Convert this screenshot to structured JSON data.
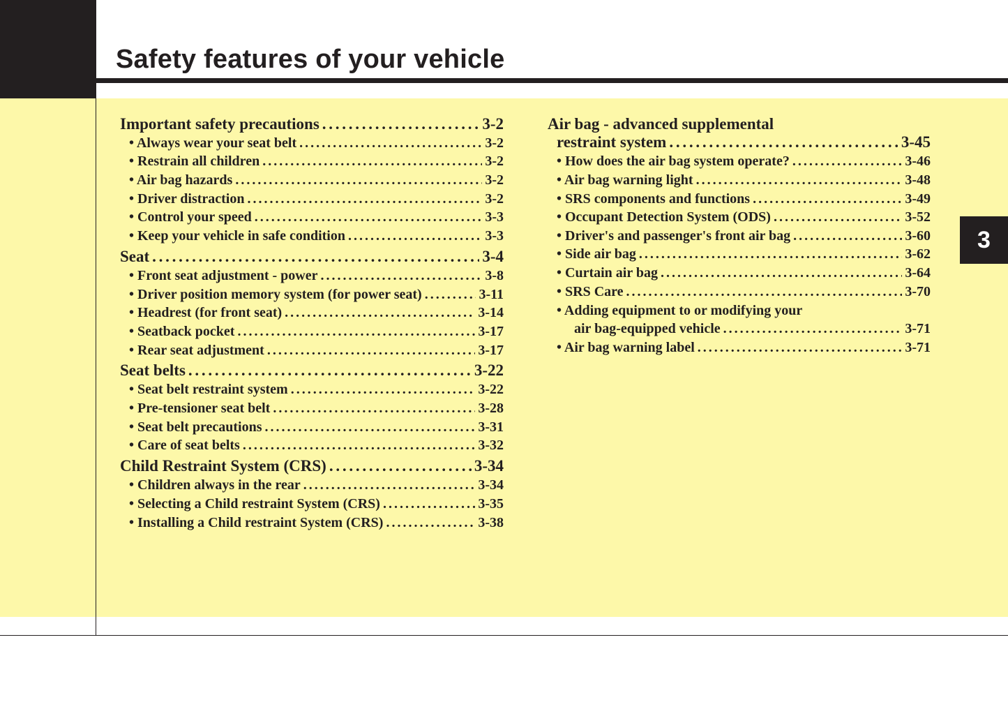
{
  "header": {
    "title": "Safety features of your vehicle",
    "chapter_tab": "3"
  },
  "colors": {
    "background": "#fdf8a9",
    "dark": "#231f20"
  },
  "toc": {
    "left": [
      {
        "level": "main",
        "label": "Important safety precautions",
        "page": "3-2"
      },
      {
        "level": "sub",
        "label": "• Always wear your seat belt",
        "page": "3-2"
      },
      {
        "level": "sub",
        "label": "• Restrain all children",
        "page": "3-2"
      },
      {
        "level": "sub",
        "label": "• Air bag hazards",
        "page": "3-2"
      },
      {
        "level": "sub",
        "label": "• Driver distraction",
        "page": "3-2"
      },
      {
        "level": "sub",
        "label": "• Control your speed",
        "page": "3-3"
      },
      {
        "level": "sub",
        "label": "• Keep your vehicle in safe condition",
        "page": "3-3"
      },
      {
        "level": "main",
        "label": "Seat",
        "page": "3-4"
      },
      {
        "level": "sub",
        "label": "• Front seat adjustment - power",
        "page": "3-8"
      },
      {
        "level": "sub",
        "label": "• Driver position memory system (for power seat)",
        "page": "3-11"
      },
      {
        "level": "sub",
        "label": "• Headrest (for front seat)",
        "page": "3-14"
      },
      {
        "level": "sub",
        "label": "• Seatback pocket",
        "page": "3-17"
      },
      {
        "level": "sub",
        "label": "• Rear seat adjustment",
        "page": "3-17"
      },
      {
        "level": "main",
        "label": "Seat belts",
        "page": "3-22"
      },
      {
        "level": "sub",
        "label": "• Seat belt restraint system",
        "page": "3-22"
      },
      {
        "level": "sub",
        "label": "• Pre-tensioner seat belt",
        "page": "3-28"
      },
      {
        "level": "sub",
        "label": "• Seat belt precautions",
        "page": "3-31"
      },
      {
        "level": "sub",
        "label": "• Care of seat belts",
        "page": "3-32"
      },
      {
        "level": "main",
        "label": "Child Restraint System (CRS)",
        "page": "3-34"
      },
      {
        "level": "sub",
        "label": "• Children always in the rear",
        "page": "3-34"
      },
      {
        "level": "sub",
        "label": "• Selecting a Child restraint System (CRS)",
        "page": "3-35"
      },
      {
        "level": "sub",
        "label": "• Installing a Child restraint System (CRS)",
        "page": "3-38"
      }
    ],
    "right": [
      {
        "level": "main",
        "label": "Air bag - advanced supplemental",
        "page": ""
      },
      {
        "level": "main-cont",
        "label": "restraint system",
        "page": "3-45"
      },
      {
        "level": "sub",
        "label": "• How does the air bag system operate?",
        "page": "3-46"
      },
      {
        "level": "sub",
        "label": "• Air bag warning light",
        "page": "3-48"
      },
      {
        "level": "sub",
        "label": "• SRS components and functions",
        "page": "3-49"
      },
      {
        "level": "sub",
        "label": "• Occupant Detection System (ODS)",
        "page": "3-52"
      },
      {
        "level": "sub",
        "label": "• Driver's and passenger's front air bag",
        "page": "3-60"
      },
      {
        "level": "sub",
        "label": "• Side air bag",
        "page": "3-62"
      },
      {
        "level": "sub",
        "label": "• Curtain air bag",
        "page": "3-64"
      },
      {
        "level": "sub",
        "label": "• SRS Care",
        "page": "3-70"
      },
      {
        "level": "sub",
        "label": "• Adding equipment to or modifying your",
        "page": ""
      },
      {
        "level": "sub-cont",
        "label": "air bag-equipped vehicle",
        "page": "3-71"
      },
      {
        "level": "sub",
        "label": "• Air bag warning label",
        "page": "3-71"
      }
    ]
  }
}
